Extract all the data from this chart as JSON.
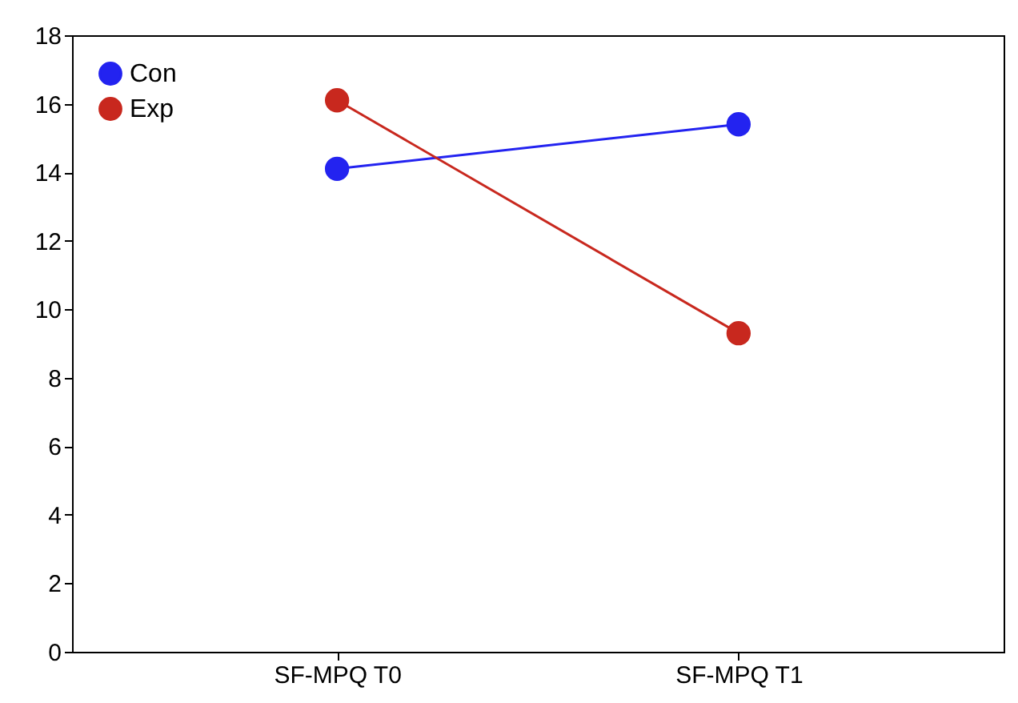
{
  "chart_data": {
    "type": "line",
    "categories": [
      "SF-MPQ T0",
      "SF-MPQ T1"
    ],
    "series": [
      {
        "name": "Con",
        "color": "#2323f0",
        "values": [
          14.1,
          15.4
        ]
      },
      {
        "name": "Exp",
        "color": "#c8281e",
        "values": [
          16.1,
          9.3
        ]
      }
    ],
    "ylim": [
      0,
      18
    ],
    "yticks": [
      0,
      2,
      4,
      6,
      8,
      10,
      12,
      14,
      16,
      18
    ],
    "grid": false,
    "legend": "top left",
    "marker": "circle",
    "line_style": "solid"
  }
}
